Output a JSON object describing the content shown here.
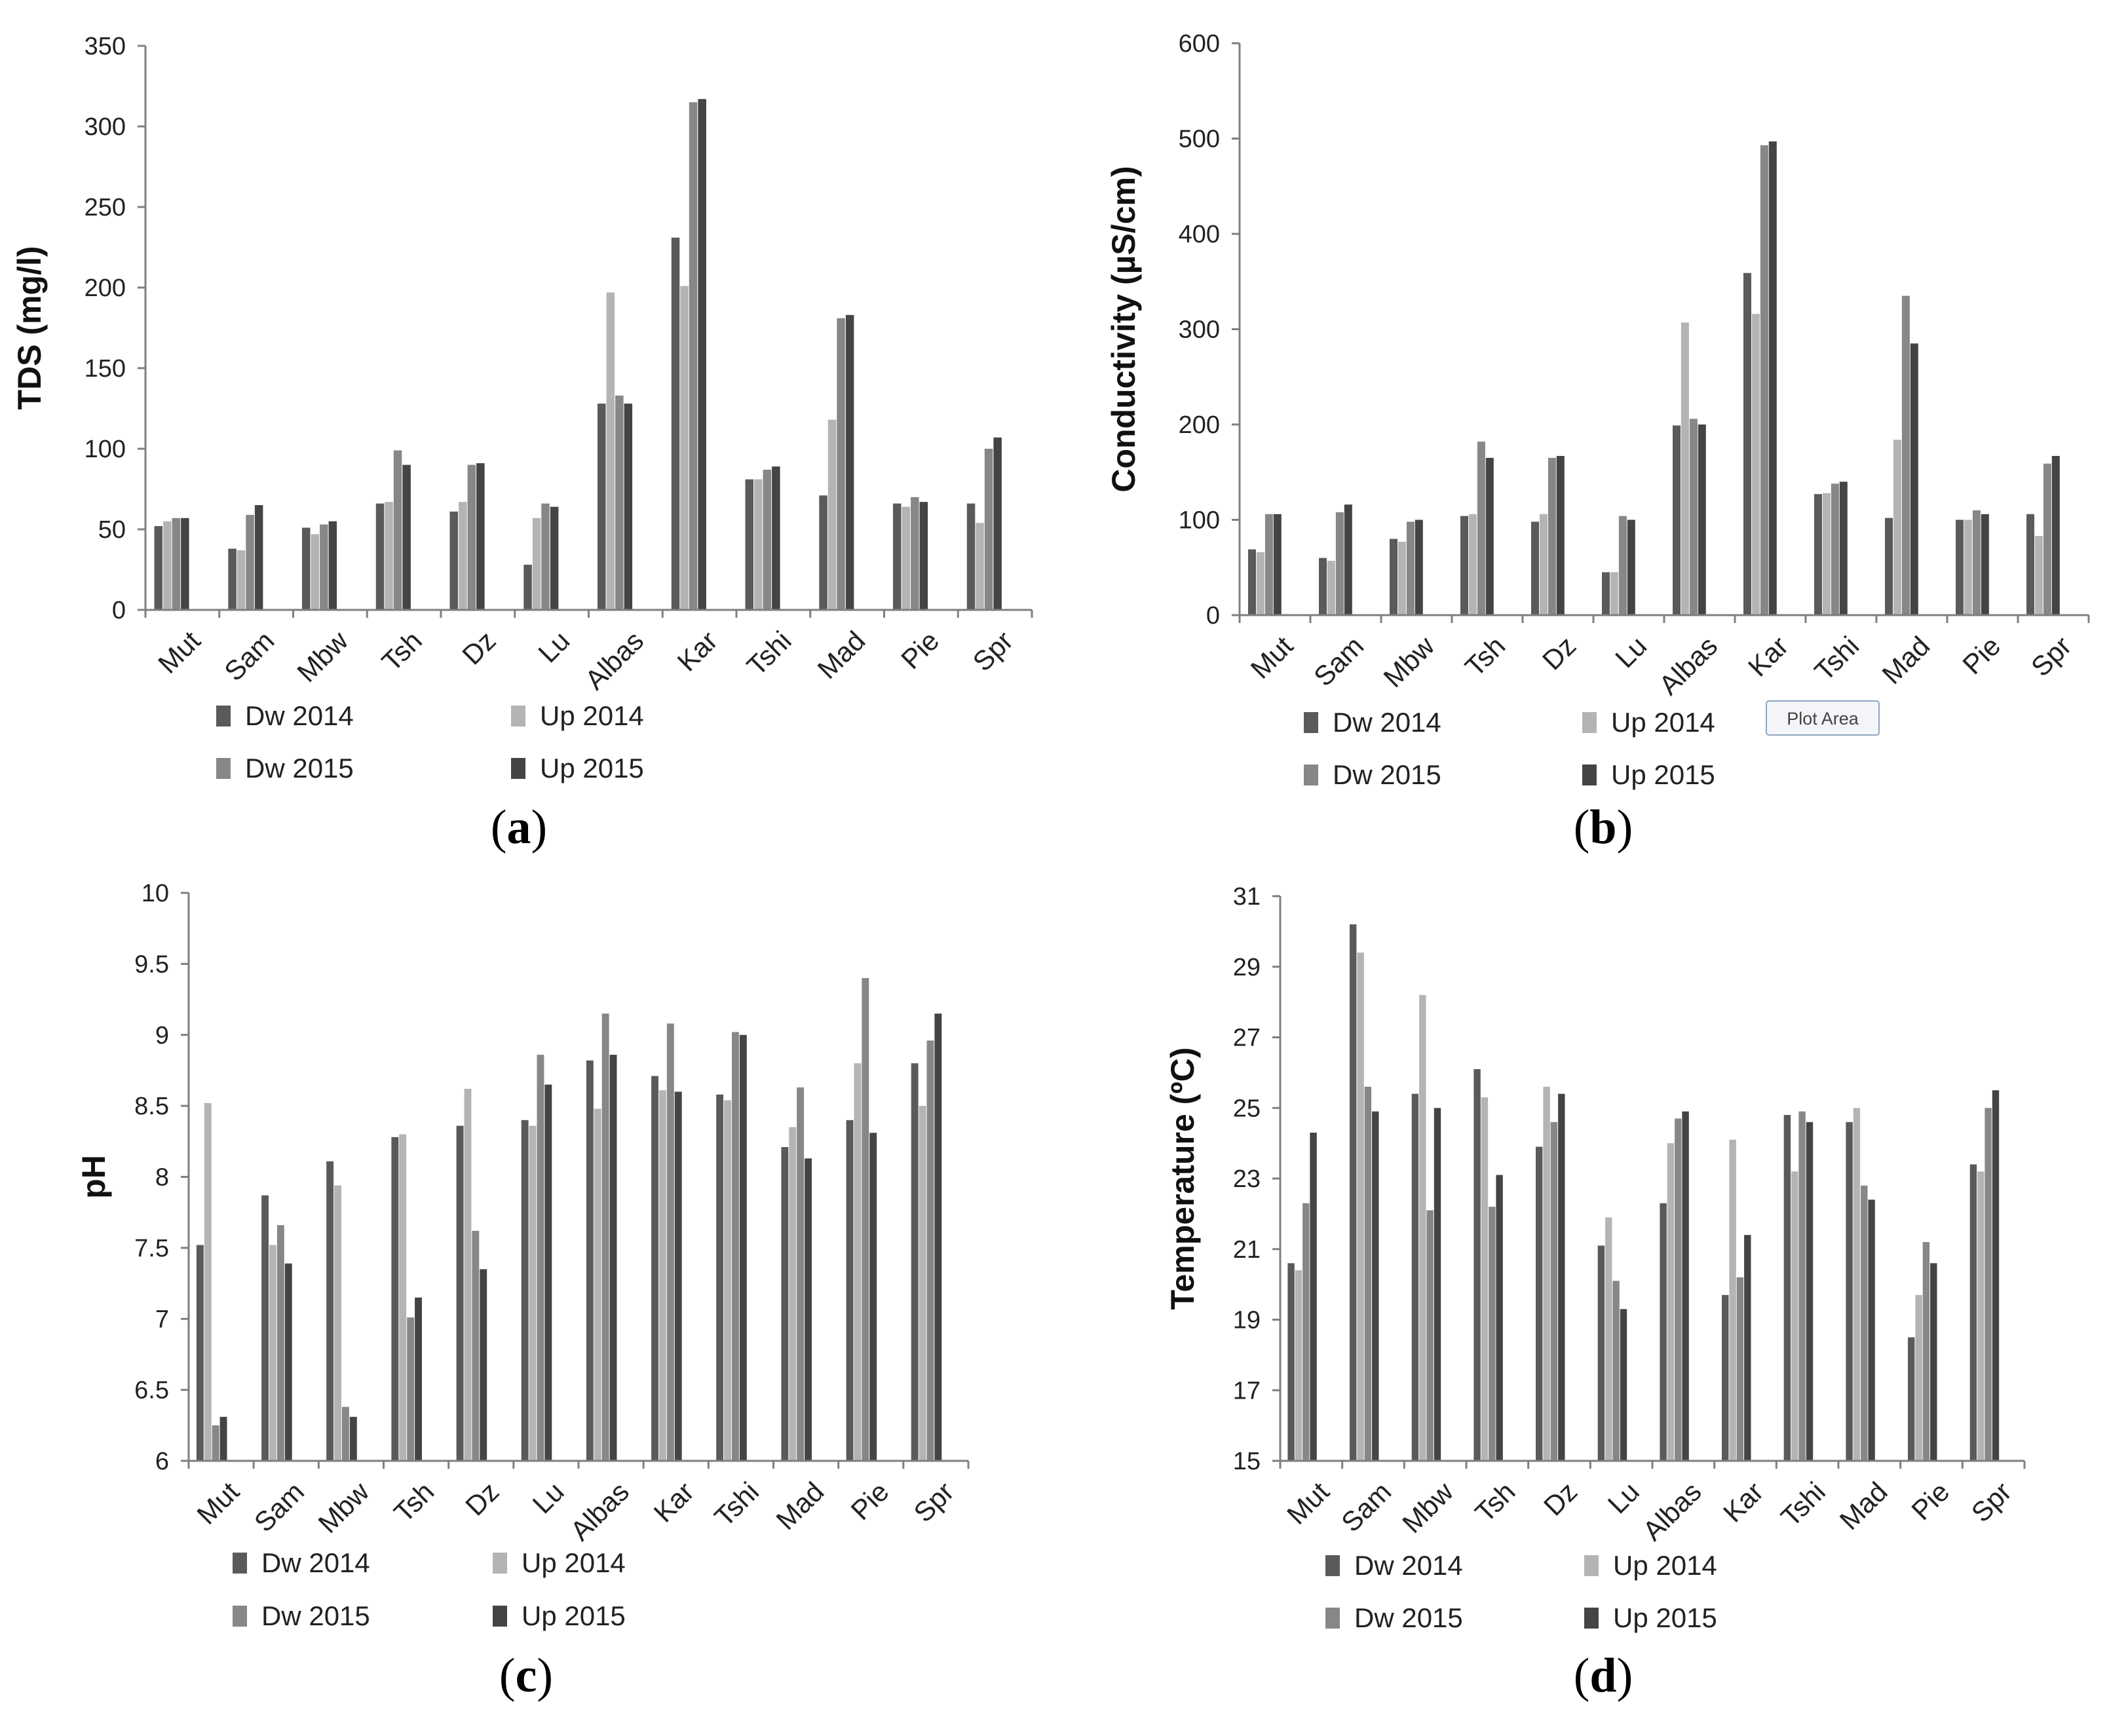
{
  "colors": {
    "Dw 2014": "#5a5a5a",
    "Up 2014": "#b4b4b4",
    "Dw 2015": "#878787",
    "Up 2015": "#444444",
    "axis": "#7f7f7f",
    "tooltip_border": "#8fa7c2",
    "tooltip_fill": "#f3f5f8"
  },
  "tooltip": {
    "label": "Plot Area",
    "panel": "b"
  },
  "chart_data": [
    {
      "id": "a",
      "panel_label": "a",
      "type": "bar",
      "title": "",
      "ylabel": "TDS (mg/l)",
      "xlabel": "",
      "ylim": [
        0,
        350
      ],
      "yticks": [
        "0",
        "50",
        "100",
        "150",
        "200",
        "250",
        "300",
        "350"
      ],
      "grid": false,
      "legend_position": "bottom-left",
      "categories": [
        "Mut",
        "Sam",
        "Mbw",
        "Tsh",
        "Dz",
        "Lu",
        "Albas",
        "Kar",
        "Tshi",
        "Mad",
        "Pie",
        "Spr"
      ],
      "legend_labels": [
        "Dw  2014",
        "Up  2014",
        "Dw  2015",
        "Up  2015"
      ],
      "series": [
        {
          "name": "Dw 2014",
          "values": [
            52,
            38,
            51,
            66,
            61,
            28,
            128,
            231,
            81,
            71,
            66,
            66
          ]
        },
        {
          "name": "Up 2014",
          "values": [
            55,
            37,
            47,
            67,
            67,
            57,
            197,
            201,
            81,
            118,
            64,
            54
          ]
        },
        {
          "name": "Dw 2015",
          "values": [
            57,
            59,
            53,
            99,
            90,
            66,
            133,
            315,
            87,
            181,
            70,
            100
          ]
        },
        {
          "name": "Up 2015",
          "values": [
            57,
            65,
            55,
            90,
            91,
            64,
            128,
            317,
            89,
            183,
            67,
            107
          ]
        }
      ]
    },
    {
      "id": "b",
      "panel_label": "b",
      "type": "bar",
      "title": "",
      "ylabel": "Conductivity (µS/cm)",
      "xlabel": "",
      "ylim": [
        0,
        600
      ],
      "yticks": [
        "0",
        "100",
        "200",
        "300",
        "400",
        "500",
        "600"
      ],
      "grid": false,
      "legend_position": "bottom-left",
      "categories": [
        "Mut",
        "Sam",
        "Mbw",
        "Tsh",
        "Dz",
        "Lu",
        "Albas",
        "Kar",
        "Tshi",
        "Mad",
        "Pie",
        "Spr"
      ],
      "legend_labels": [
        "Dw  2014",
        "Up  2014",
        "Dw  2015",
        "Up  2015"
      ],
      "series": [
        {
          "name": "Dw 2014",
          "values": [
            69,
            60,
            80,
            104,
            98,
            45,
            199,
            359,
            127,
            102,
            100,
            106
          ]
        },
        {
          "name": "Up 2014",
          "values": [
            66,
            57,
            77,
            106,
            106,
            45,
            307,
            316,
            128,
            184,
            100,
            83
          ]
        },
        {
          "name": "Dw 2015",
          "values": [
            106,
            108,
            98,
            182,
            165,
            104,
            206,
            493,
            138,
            335,
            110,
            159
          ]
        },
        {
          "name": "Up 2015",
          "values": [
            106,
            116,
            100,
            165,
            167,
            100,
            200,
            497,
            140,
            285,
            106,
            167
          ]
        }
      ]
    },
    {
      "id": "c",
      "panel_label": "c",
      "type": "bar",
      "title": "",
      "ylabel": "pH",
      "xlabel": "",
      "ylim": [
        6,
        10
      ],
      "yticks": [
        "6",
        "6.5",
        "7",
        "7.5",
        "8",
        "8.5",
        "9",
        "9.5",
        "10"
      ],
      "grid": false,
      "legend_position": "bottom-left",
      "categories": [
        "Mut",
        "Sam",
        "Mbw",
        "Tsh",
        "Dz",
        "Lu",
        "Albas",
        "Kar",
        "Tshi",
        "Mad",
        "Pie",
        "Spr"
      ],
      "legend_labels": [
        "Dw  2014",
        "Up 2014",
        "Dw 2015",
        "Up 2015"
      ],
      "series": [
        {
          "name": "Dw 2014",
          "values": [
            7.52,
            7.87,
            8.11,
            8.28,
            8.36,
            8.4,
            8.82,
            8.71,
            8.58,
            8.21,
            8.4,
            8.8
          ]
        },
        {
          "name": "Up 2014",
          "values": [
            8.52,
            7.52,
            7.94,
            8.3,
            8.62,
            8.36,
            8.48,
            8.61,
            8.54,
            8.35,
            8.8,
            8.5
          ]
        },
        {
          "name": "Dw 2015",
          "values": [
            6.25,
            7.66,
            6.38,
            7.01,
            7.62,
            8.86,
            9.15,
            9.08,
            9.02,
            8.63,
            9.4,
            8.96
          ]
        },
        {
          "name": "Up 2015",
          "values": [
            6.31,
            7.39,
            6.31,
            7.15,
            7.35,
            8.65,
            8.86,
            8.6,
            9.0,
            8.13,
            8.31,
            9.15
          ]
        }
      ]
    },
    {
      "id": "d",
      "panel_label": "d",
      "type": "bar",
      "title": "",
      "ylabel": "Temperature (ºC)",
      "xlabel": "",
      "ylim": [
        15,
        31
      ],
      "yticks": [
        "15",
        "17",
        "19",
        "21",
        "23",
        "25",
        "27",
        "29",
        "31"
      ],
      "grid": false,
      "legend_position": "bottom-left",
      "categories": [
        "Mut",
        "Sam",
        "Mbw",
        "Tsh",
        "Dz",
        "Lu",
        "Albas",
        "Kar",
        "Tshi",
        "Mad",
        "Pie",
        "Spr"
      ],
      "legend_labels": [
        "Dw  2014",
        "Up  2014",
        "Dw  2015",
        "Up  2015"
      ],
      "series": [
        {
          "name": "Dw 2014",
          "values": [
            20.6,
            30.2,
            25.4,
            26.1,
            23.9,
            21.1,
            22.3,
            19.7,
            24.8,
            24.6,
            18.5,
            23.4
          ]
        },
        {
          "name": "Up 2014",
          "values": [
            20.4,
            29.4,
            28.2,
            25.3,
            25.6,
            21.9,
            24.0,
            24.1,
            23.2,
            25.0,
            19.7,
            23.2
          ]
        },
        {
          "name": "Dw 2015",
          "values": [
            22.3,
            25.6,
            22.1,
            22.2,
            24.6,
            20.1,
            24.7,
            20.2,
            24.9,
            22.8,
            21.2,
            25.0
          ]
        },
        {
          "name": "Up 2015",
          "values": [
            24.3,
            24.9,
            25.0,
            23.1,
            25.4,
            19.3,
            24.9,
            21.4,
            24.6,
            22.4,
            20.6,
            25.5
          ]
        }
      ]
    }
  ]
}
